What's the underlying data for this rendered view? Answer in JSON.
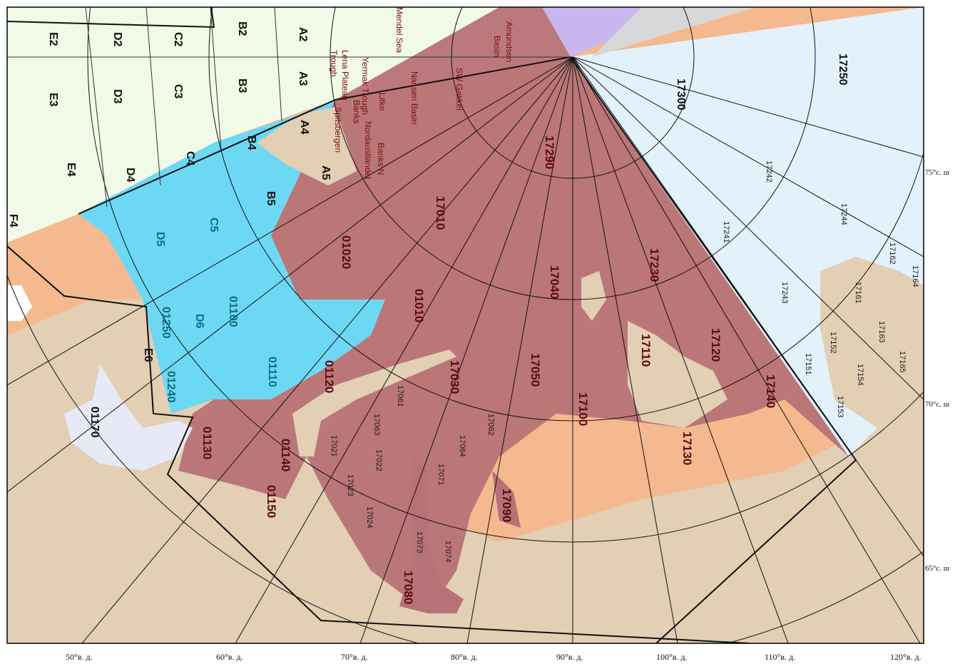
{
  "map": {
    "colors": {
      "background": "#f5b98f",
      "land": "#e2cfb4",
      "north_grid_area": "#f0fae6",
      "east_grid_area": "#e3f1fa",
      "blue_area": "#6dd8f4",
      "red_area": "#b77277",
      "purple_area": "#c9b6ef",
      "grey_area": "#bdbdbd"
    },
    "longitude_labels": [
      "50°в. д.",
      "60°в. д.",
      "70°в. д.",
      "80°в. д.",
      "90°в. д.",
      "100°в. д.",
      "110°в. д.",
      "120°в. д."
    ],
    "latitude_labels": [
      "75°с. ш",
      "70°с. ш",
      "65°с. ш"
    ],
    "grid_cells": [
      "E2",
      "D2",
      "C2",
      "B2",
      "A2",
      "E3",
      "D3",
      "C3",
      "B3",
      "A3",
      "E4",
      "D4",
      "C4",
      "B4",
      "A4",
      "A5",
      "B5",
      "C5",
      "D5",
      "D6",
      "E6",
      "F4"
    ],
    "red_zones": [
      "17010",
      "01020",
      "01010",
      "17040",
      "17230",
      "17290",
      "17110",
      "17120",
      "17140",
      "17050",
      "17030",
      "17100",
      "17130",
      "01120",
      "01130",
      "01140",
      "01150",
      "17080",
      "17090"
    ],
    "blue_zones": [
      "01100",
      "01110",
      "01240",
      "01250"
    ],
    "other_zones": [
      "01170",
      "17300",
      "17250"
    ],
    "small_zones": [
      "17061",
      "17063",
      "17062",
      "17064",
      "17021",
      "17022",
      "17023",
      "17024",
      "17071",
      "17073",
      "17074",
      "17242",
      "17244",
      "17241",
      "17243",
      "17162",
      "17164",
      "17161",
      "17163",
      "17165",
      "17152",
      "17154",
      "17151",
      "17153"
    ],
    "sea_features": [
      "Amundsen Basin",
      "Nansen Basin",
      "SW Gakkel",
      "Litke Trough",
      "Yermak Trough",
      "Banks N",
      "Nordaustlandet",
      "Spitsbergen",
      "Lena Plateau",
      "Mendel Sea",
      "Banks",
      "Trough"
    ]
  }
}
